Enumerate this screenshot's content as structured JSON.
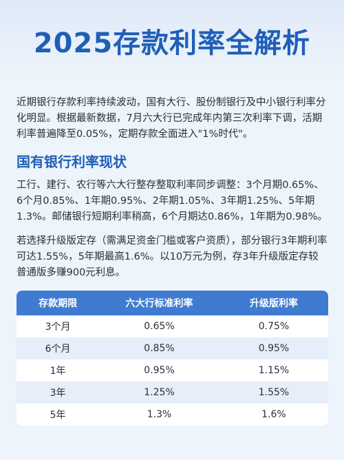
{
  "title": "2025存款利率全解析",
  "intro": "近期银行存款利率持续波动，国有大行、股份制银行及中小银行利率分化明显。根据最新数据，7月六大行已完成年内第三次利率下调，活期利率普遍降至0.05%，定期存款全面进入\"1%时代\"。",
  "section_heading": "国有银行利率现状",
  "para2": "工行、建行、农行等六大行整存整取利率同步调整：3个月期0.65%、6个月0.85%、1年期0.95%、2年期1.05%、3年期1.25%、5年期1.3%。邮储银行短期利率稍高，6个月期达0.86%，1年期为0.98%。",
  "para3": "若选择升级版定存（需满足资金门槛或客户资质），部分银行3年期利率可达1.55%，5年期最高1.6%。以10万元为例，存3年升级版定存较普通版多赚900元利息。",
  "table": {
    "headers": [
      "存款期限",
      "六大行标准利率",
      "升级版利率"
    ],
    "rows": [
      [
        "3个月",
        "0.65%",
        "0.75%"
      ],
      [
        "6个月",
        "0.85%",
        "0.95%"
      ],
      [
        "1年",
        "0.95%",
        "1.15%"
      ],
      [
        "3年",
        "1.25%",
        "1.55%"
      ],
      [
        "5年",
        "1.3%",
        "1.6%"
      ]
    ]
  },
  "colors": {
    "accent": "#1f5fb8",
    "table_header": "#3f7bd1",
    "background": "#eef4fb"
  }
}
